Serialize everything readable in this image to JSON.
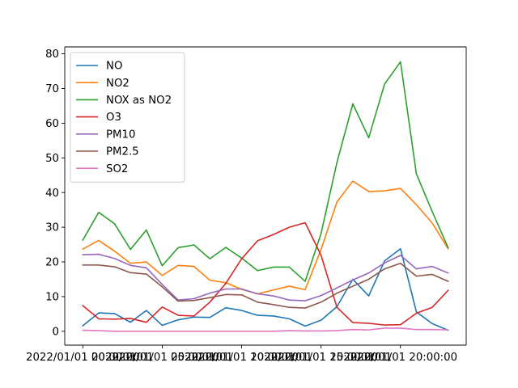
{
  "chart_data": {
    "type": "line",
    "title": "",
    "xlabel": "",
    "ylabel": "",
    "x": [
      "2022/01/01 00:00:00",
      "2022/01/01 01:00:00",
      "2022/01/01 02:00:00",
      "2022/01/01 03:00:00",
      "2022/01/01 04:00:00",
      "2022/01/01 05:00:00",
      "2022/01/01 06:00:00",
      "2022/01/01 07:00:00",
      "2022/01/01 08:00:00",
      "2022/01/01 09:00:00",
      "2022/01/01 10:00:00",
      "2022/01/01 11:00:00",
      "2022/01/01 12:00:00",
      "2022/01/01 13:00:00",
      "2022/01/01 14:00:00",
      "2022/01/01 15:00:00",
      "2022/01/01 16:00:00",
      "2022/01/01 17:00:00",
      "2022/01/01 18:00:00",
      "2022/01/01 19:00:00",
      "2022/01/01 20:00:00",
      "2022/01/01 21:00:00",
      "2022/01/01 22:00:00",
      "2022/01/01 23:00:00"
    ],
    "xtick_labels": [
      "2022/01/01 00:00:00",
      "2022/01/01 05:00:00",
      "2022/01/01 10:00:00",
      "2022/01/01 15:00:00",
      "2022/01/01 20:00:00"
    ],
    "xtick_labels_overlapped": [
      "2022/01/01",
      "2022/01/01",
      "2022/01/01",
      "2022/01/01"
    ],
    "yticks": [
      0,
      10,
      20,
      30,
      40,
      50,
      60,
      70,
      80
    ],
    "ylim": [
      -4,
      82
    ],
    "legend_position": "upper-left",
    "series": [
      {
        "name": "NO",
        "color": "#1f77b4",
        "values": [
          1.6,
          5.3,
          5.1,
          2.6,
          6.0,
          1.7,
          3.3,
          4.1,
          4.0,
          6.8,
          6.0,
          4.6,
          4.4,
          3.6,
          1.5,
          3.2,
          7.1,
          15.0,
          10.2,
          20.3,
          23.8,
          5.6,
          2.2,
          0.3
        ]
      },
      {
        "name": "NO2",
        "color": "#ff7f0e",
        "values": [
          23.7,
          26.2,
          23.1,
          19.6,
          20.0,
          16.1,
          19.0,
          18.7,
          14.7,
          14.0,
          12.1,
          10.8,
          11.9,
          13.0,
          12.0,
          23.6,
          37.3,
          43.3,
          40.3,
          40.5,
          41.2,
          36.5,
          31.2,
          23.8
        ]
      },
      {
        "name": "NOX as NO2",
        "color": "#2ca02c",
        "values": [
          26.3,
          34.3,
          31.0,
          23.6,
          29.2,
          18.9,
          24.1,
          24.9,
          20.9,
          24.2,
          21.1,
          17.5,
          18.5,
          18.5,
          14.4,
          28.2,
          48.7,
          65.6,
          55.8,
          71.3,
          77.7,
          45.4,
          34.5,
          24.1
        ]
      },
      {
        "name": "O3",
        "color": "#d62728",
        "values": [
          7.4,
          3.6,
          3.5,
          3.7,
          2.6,
          7.0,
          4.6,
          4.4,
          8.4,
          13.8,
          20.9,
          26.1,
          27.9,
          30.0,
          31.3,
          21.9,
          6.9,
          2.5,
          2.3,
          1.8,
          1.9,
          5.2,
          6.9,
          11.8
        ]
      },
      {
        "name": "PM10",
        "color": "#9467bd",
        "values": [
          22.1,
          22.2,
          21.0,
          19.0,
          18.3,
          13.5,
          9.0,
          9.4,
          11.0,
          12.2,
          12.2,
          10.8,
          10.2,
          9.0,
          8.8,
          10.3,
          12.5,
          14.8,
          16.8,
          19.7,
          21.9,
          18.0,
          18.7,
          16.8
        ]
      },
      {
        "name": "PM2.5",
        "color": "#8c564b",
        "values": [
          19.1,
          19.1,
          18.6,
          16.9,
          16.5,
          12.8,
          8.7,
          8.9,
          9.7,
          10.6,
          10.5,
          8.4,
          7.7,
          6.9,
          6.7,
          8.4,
          11.0,
          13.0,
          15.0,
          18.0,
          19.6,
          15.9,
          16.4,
          14.4
        ]
      },
      {
        "name": "SO2",
        "color": "#e377c2",
        "values": [
          0.3,
          0.2,
          0.0,
          0.0,
          0.0,
          0.0,
          0.0,
          0.0,
          0.0,
          0.0,
          0.0,
          0.0,
          0.0,
          0.2,
          0.1,
          0.1,
          0.2,
          0.5,
          0.4,
          0.9,
          0.9,
          0.5,
          0.5,
          0.4
        ]
      }
    ]
  }
}
